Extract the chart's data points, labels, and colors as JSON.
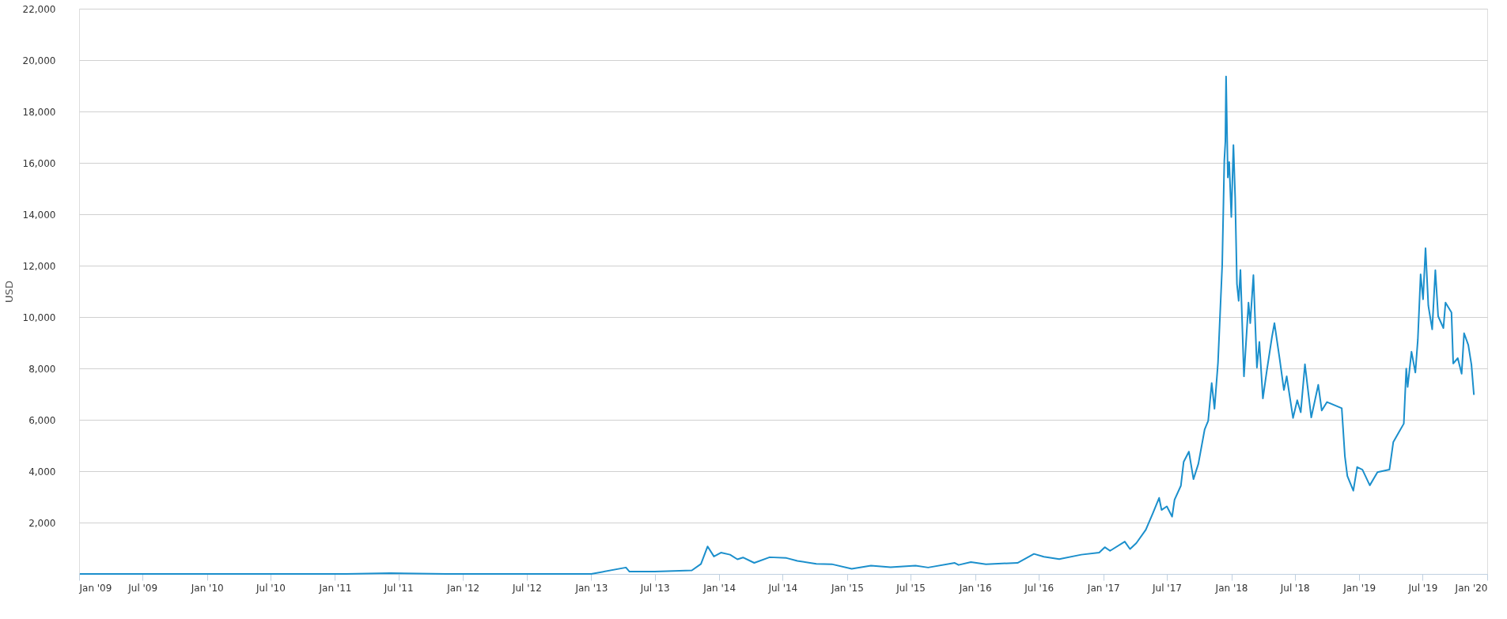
{
  "chart_data": {
    "type": "line",
    "ylabel": "USD",
    "grid": "y",
    "legend": false,
    "marker": "none",
    "line_style": "solid",
    "xlim": [
      "2009-01-01",
      "2020-01-01"
    ],
    "xticks": [
      {
        "value": "2009-01-01",
        "label": "Jan '09"
      },
      {
        "value": "2009-07-01",
        "label": "Jul '09"
      },
      {
        "value": "2010-01-01",
        "label": "Jan '10"
      },
      {
        "value": "2010-07-01",
        "label": "Jul '10"
      },
      {
        "value": "2011-01-01",
        "label": "Jan '11"
      },
      {
        "value": "2011-07-01",
        "label": "Jul '11"
      },
      {
        "value": "2012-01-01",
        "label": "Jan '12"
      },
      {
        "value": "2012-07-01",
        "label": "Jul '12"
      },
      {
        "value": "2013-01-01",
        "label": "Jan '13"
      },
      {
        "value": "2013-07-01",
        "label": "Jul '13"
      },
      {
        "value": "2014-01-01",
        "label": "Jan '14"
      },
      {
        "value": "2014-07-01",
        "label": "Jul '14"
      },
      {
        "value": "2015-01-01",
        "label": "Jan '15"
      },
      {
        "value": "2015-07-01",
        "label": "Jul '15"
      },
      {
        "value": "2016-01-01",
        "label": "Jan '16"
      },
      {
        "value": "2016-07-01",
        "label": "Jul '16"
      },
      {
        "value": "2017-01-01",
        "label": "Jan '17"
      },
      {
        "value": "2017-07-01",
        "label": "Jul '17"
      },
      {
        "value": "2018-01-01",
        "label": "Jan '18"
      },
      {
        "value": "2018-07-01",
        "label": "Jul '18"
      },
      {
        "value": "2019-01-01",
        "label": "Jan '19"
      },
      {
        "value": "2019-07-01",
        "label": "Jul '19"
      },
      {
        "value": "2020-01-01",
        "label": "Jan '20"
      }
    ],
    "ylim": [
      0,
      22000
    ],
    "yticks": [
      {
        "value": 2000,
        "label": "2,000"
      },
      {
        "value": 4000,
        "label": "4,000"
      },
      {
        "value": 6000,
        "label": "6,000"
      },
      {
        "value": 8000,
        "label": "8,000"
      },
      {
        "value": 10000,
        "label": "10,000"
      },
      {
        "value": 12000,
        "label": "12,000"
      },
      {
        "value": 14000,
        "label": "14,000"
      },
      {
        "value": 16000,
        "label": "16,000"
      },
      {
        "value": 18000,
        "label": "18,000"
      },
      {
        "value": 20000,
        "label": "20,000"
      },
      {
        "value": 22000,
        "label": "22,000"
      }
    ],
    "x": [
      "2009-01-03",
      "2010-07-17",
      "2011-02-01",
      "2011-06-08",
      "2011-11-15",
      "2012-06-15",
      "2013-01-01",
      "2013-04-10",
      "2013-04-20",
      "2013-07-01",
      "2013-10-15",
      "2013-11-10",
      "2013-11-29",
      "2013-12-17",
      "2014-01-06",
      "2014-02-01",
      "2014-02-22",
      "2014-03-10",
      "2014-04-11",
      "2014-05-25",
      "2014-07-12",
      "2014-08-12",
      "2014-10-05",
      "2014-11-18",
      "2015-01-14",
      "2015-03-10",
      "2015-05-05",
      "2015-07-15",
      "2015-08-20",
      "2015-11-04",
      "2015-11-15",
      "2015-12-20",
      "2016-02-01",
      "2016-05-01",
      "2016-06-17",
      "2016-07-15",
      "2016-08-28",
      "2016-10-30",
      "2016-12-20",
      "2017-01-05",
      "2017-01-20",
      "2017-03-03",
      "2017-03-18",
      "2017-04-05",
      "2017-05-02",
      "2017-05-22",
      "2017-06-09",
      "2017-06-16",
      "2017-07-01",
      "2017-07-16",
      "2017-07-23",
      "2017-08-10",
      "2017-08-18",
      "2017-09-02",
      "2017-09-15",
      "2017-09-29",
      "2017-10-17",
      "2017-10-27",
      "2017-11-06",
      "2017-11-14",
      "2017-11-24",
      "2017-12-06",
      "2017-12-12",
      "2017-12-15",
      "2017-12-17",
      "2017-12-22",
      "2017-12-26",
      "2018-01-01",
      "2018-01-07",
      "2018-01-12",
      "2018-01-17",
      "2018-01-22",
      "2018-01-27",
      "2018-02-06",
      "2018-02-19",
      "2018-02-24",
      "2018-03-05",
      "2018-03-15",
      "2018-03-22",
      "2018-04-01",
      "2018-04-12",
      "2018-04-27",
      "2018-05-04",
      "2018-05-19",
      "2018-05-31",
      "2018-06-08",
      "2018-06-26",
      "2018-07-08",
      "2018-07-18",
      "2018-07-30",
      "2018-08-17",
      "2018-09-06",
      "2018-09-16",
      "2018-10-01",
      "2018-11-12",
      "2018-11-21",
      "2018-11-28",
      "2018-12-15",
      "2018-12-26",
      "2019-01-10",
      "2019-01-31",
      "2019-02-22",
      "2019-03-28",
      "2019-04-08",
      "2019-04-23",
      "2019-05-08",
      "2019-05-15",
      "2019-05-19",
      "2019-05-30",
      "2019-06-10",
      "2019-06-17",
      "2019-06-25",
      "2019-07-02",
      "2019-07-09",
      "2019-07-17",
      "2019-07-28",
      "2019-08-06",
      "2019-08-14",
      "2019-08-29",
      "2019-09-04",
      "2019-09-21",
      "2019-09-26",
      "2019-10-09",
      "2019-10-20",
      "2019-10-27",
      "2019-11-08",
      "2019-11-17",
      "2019-11-24"
    ],
    "series": [
      {
        "color": "#1b8fcc",
        "values": [
          0,
          0,
          0,
          30,
          0,
          0,
          0,
          250,
          90,
          90,
          140,
          390,
          1070,
          680,
          830,
          750,
          570,
          640,
          430,
          650,
          620,
          510,
          390,
          380,
          200,
          320,
          260,
          320,
          250,
          430,
          350,
          460,
          380,
          430,
          780,
          670,
          580,
          750,
          830,
          1040,
          900,
          1260,
          970,
          1200,
          1720,
          2360,
          2960,
          2490,
          2630,
          2230,
          2890,
          3430,
          4360,
          4760,
          3690,
          4290,
          5630,
          5960,
          7430,
          6430,
          8230,
          12030,
          16090,
          16830,
          19360,
          15430,
          16030,
          13890,
          16690,
          14630,
          11290,
          10630,
          11830,
          7690,
          10560,
          9760,
          11630,
          8030,
          9030,
          6830,
          7890,
          9230,
          9760,
          8360,
          7160,
          7690,
          6070,
          6760,
          6290,
          8160,
          6090,
          7360,
          6360,
          6690,
          6450,
          4570,
          3810,
          3240,
          4160,
          4060,
          3450,
          3960,
          4060,
          5130,
          5490,
          5850,
          7990,
          7280,
          8650,
          7840,
          9110,
          11660,
          10690,
          12680,
          10440,
          9520,
          11820,
          10030,
          9570,
          10560,
          10180,
          8190,
          8400,
          7790,
          9370,
          8910,
          8140,
          6970
        ]
      }
    ]
  }
}
